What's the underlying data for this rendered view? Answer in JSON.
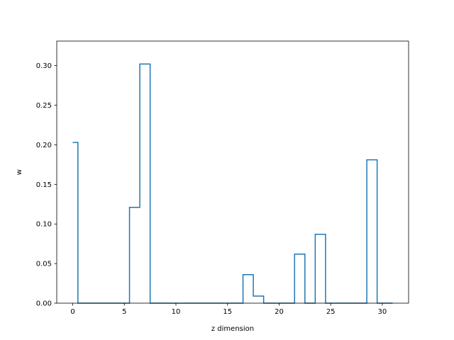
{
  "chart_data": {
    "type": "line",
    "step": "mid",
    "xlabel": "z dimension",
    "ylabel": "w",
    "xlim": [
      -1.55,
      32.55
    ],
    "ylim": [
      0.0,
      0.331
    ],
    "xticks": [
      0,
      5,
      10,
      15,
      20,
      25,
      30
    ],
    "yticks": [
      0.0,
      0.05,
      0.1,
      0.15,
      0.2,
      0.25,
      0.3
    ],
    "ytick_labels": [
      "0.00",
      "0.05",
      "0.10",
      "0.15",
      "0.20",
      "0.25",
      "0.30"
    ],
    "grid": false,
    "color": "#1f77b4",
    "series": [
      {
        "x": [
          0,
          1,
          2,
          3,
          4,
          5,
          6,
          7,
          8,
          9,
          10,
          11,
          12,
          13,
          14,
          15,
          16,
          17,
          18,
          19,
          20,
          21,
          22,
          23,
          24,
          25,
          26,
          27,
          28,
          29,
          30,
          31
        ],
        "values": [
          0.203,
          0,
          0,
          0,
          0,
          0,
          0.121,
          0.302,
          0,
          0,
          0,
          0,
          0,
          0,
          0,
          0,
          0,
          0.036,
          0.009,
          0,
          0,
          0,
          0.062,
          0,
          0.087,
          0,
          0,
          0,
          0,
          0.181,
          0,
          0
        ]
      }
    ]
  }
}
